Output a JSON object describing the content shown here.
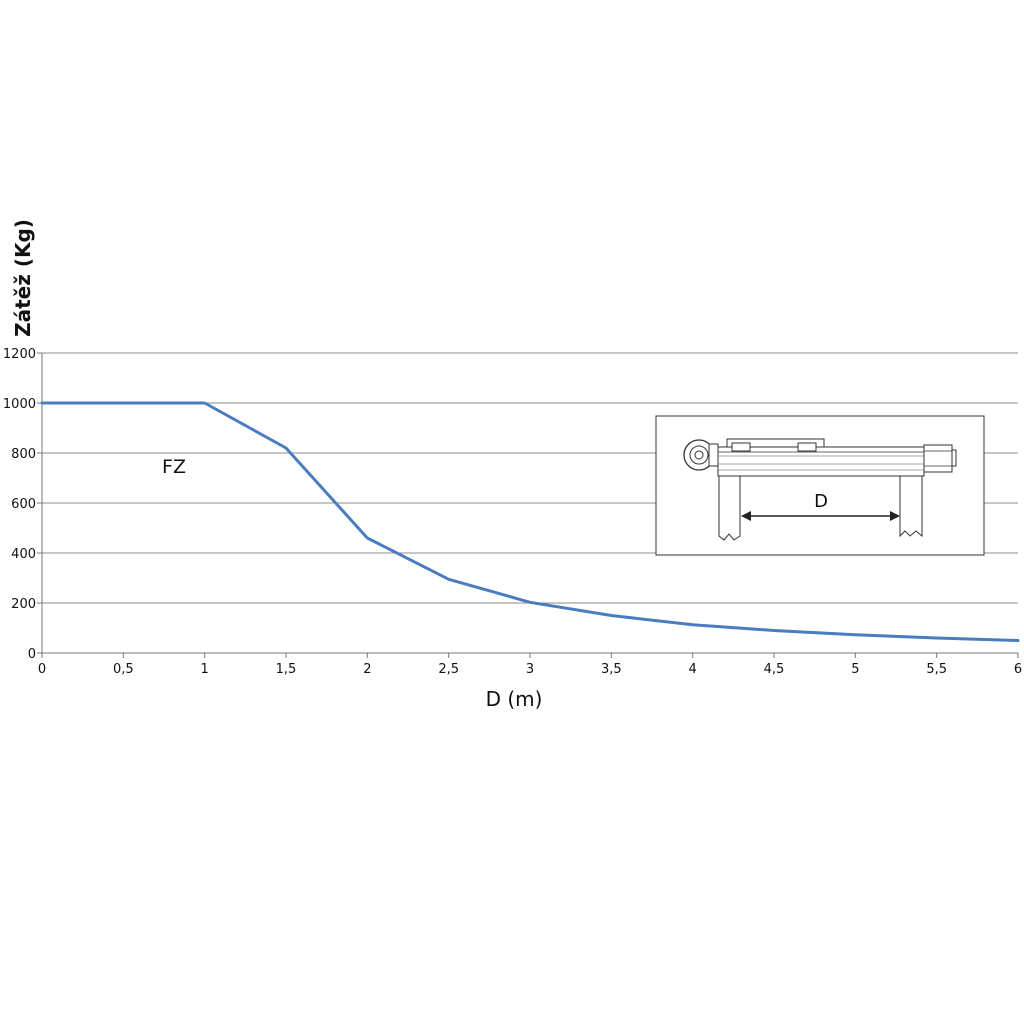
{
  "chart_data": {
    "type": "line",
    "title": "",
    "xlabel": "D (m)",
    "ylabel": "Zátěž (Kg)",
    "xlim": [
      0,
      6
    ],
    "ylim": [
      0,
      1200
    ],
    "x_ticks": [
      "0",
      "0,5",
      "1",
      "1,5",
      "2",
      "2,5",
      "3",
      "3,5",
      "4",
      "4,5",
      "5",
      "5,5",
      "6"
    ],
    "y_ticks": [
      "0",
      "200",
      "400",
      "600",
      "800",
      "1000",
      "1200"
    ],
    "grid": "horizontal",
    "series": [
      {
        "annotation": "FZ",
        "color": "#4a7cc0",
        "x": [
          0,
          1,
          1.5,
          2,
          2.5,
          3,
          3.5,
          4,
          4.5,
          5,
          5.5,
          6
        ],
        "y": [
          1000,
          1000,
          820,
          460,
          295,
          203,
          150,
          113,
          90,
          73,
          60,
          50
        ]
      }
    ],
    "inset": {
      "dimension_label": "D"
    }
  }
}
